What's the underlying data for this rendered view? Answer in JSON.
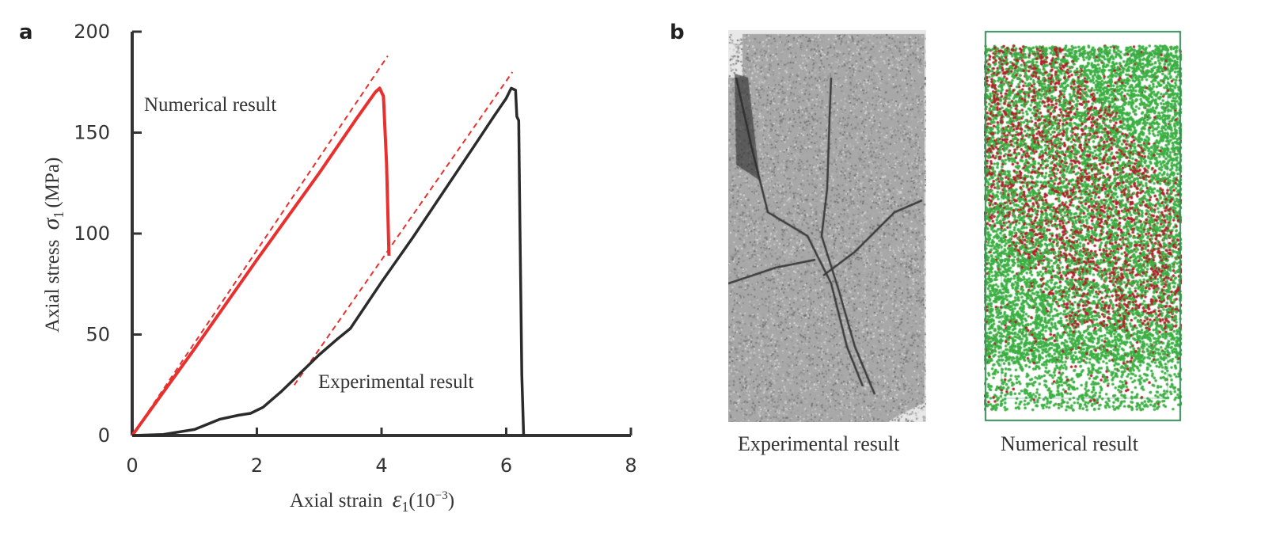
{
  "panel_a_letter": "a",
  "panel_b_letter": "b",
  "chart_data": {
    "type": "line",
    "xlabel": "Axial strain ε1(10^-3)",
    "xlabel_parts": {
      "text": "Axial strain",
      "symbol": "ε",
      "sub": "1",
      "unit": "(10",
      "exp": "−3",
      "close": ")"
    },
    "ylabel": "Axial stress σ1 (MPa)",
    "ylabel_parts": {
      "text": "Axial stress",
      "symbol": "σ",
      "sub": "1",
      "unit": "(MPa)"
    },
    "xlim": [
      0,
      8
    ],
    "ylim": [
      0,
      200
    ],
    "xticks": [
      "0",
      "2",
      "4",
      "6",
      "8"
    ],
    "yticks": [
      "0",
      "50",
      "100",
      "150",
      "200"
    ],
    "grid": false,
    "series": [
      {
        "name": "Numerical result",
        "color": "#e8302e",
        "x": [
          0,
          1,
          2,
          3,
          3.6,
          3.9,
          3.97,
          4.03,
          4.08,
          4.12
        ],
        "y": [
          0,
          43,
          87,
          130,
          157,
          170,
          172,
          168,
          135,
          89
        ]
      },
      {
        "name": "Experimental result",
        "color": "#2b2b2b",
        "x": [
          0,
          0.5,
          1.0,
          1.4,
          1.7,
          1.9,
          2.1,
          2.4,
          2.6,
          3.0,
          3.3,
          3.5,
          4.0,
          4.5,
          5.0,
          5.5,
          5.8,
          6.0,
          6.08,
          6.15,
          6.17,
          6.2,
          6.22,
          6.25,
          6.28
        ],
        "y": [
          0,
          0.5,
          3,
          8,
          10,
          11,
          14,
          22,
          28,
          40,
          48,
          53,
          76,
          98,
          121,
          144,
          158,
          167,
          172,
          171,
          158,
          156,
          105,
          30,
          0
        ]
      }
    ],
    "fit_lines": [
      {
        "color": "#e8302e",
        "style": "dashed",
        "x": [
          0,
          4.1
        ],
        "y": [
          0,
          188
        ]
      },
      {
        "color": "#e8302e",
        "style": "dashed",
        "x": [
          2.6,
          6.1
        ],
        "y": [
          25,
          180
        ]
      }
    ],
    "annotations": [
      "Numerical result",
      "Experimental result"
    ]
  },
  "images": {
    "experimental_label": "Experimental result",
    "numerical_label": "Numerical result",
    "crack_color": "#3a3a3a",
    "rock_color": "#a8a8a8",
    "particle_green": "#3cb043",
    "particle_red": "#b3202a",
    "box_color": "#3a8a5a"
  }
}
